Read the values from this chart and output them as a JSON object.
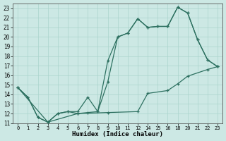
{
  "xlabel": "Humidex (Indice chaleur)",
  "bg_color": "#cce8e4",
  "grid_color": "#aad4cc",
  "line_color": "#2d7060",
  "xlim": [
    -0.5,
    20.5
  ],
  "ylim": [
    11,
    23.5
  ],
  "xtick_positions": [
    0,
    1,
    2,
    3,
    4,
    5,
    6,
    7,
    8,
    9,
    10,
    11,
    12,
    13,
    14,
    15,
    16,
    17,
    18,
    19,
    20
  ],
  "xtick_labels": [
    "0",
    "1",
    "2",
    "3",
    "4",
    "5",
    "6",
    "7",
    "8",
    "9",
    "10",
    "11",
    "12",
    "14",
    "15",
    "16",
    "18",
    "20",
    "21",
    "22",
    "23"
  ],
  "ytick_vals": [
    11,
    12,
    13,
    14,
    15,
    16,
    17,
    18,
    19,
    20,
    21,
    22,
    23
  ],
  "line1_xi": [
    0,
    1,
    2,
    3,
    4,
    5,
    6,
    7,
    8,
    9,
    10,
    11,
    12,
    13,
    14,
    15,
    16,
    17,
    18,
    19,
    20
  ],
  "line1_y": [
    14.7,
    13.7,
    11.6,
    11.1,
    12.0,
    12.2,
    12.0,
    12.1,
    12.2,
    15.3,
    20.0,
    20.4,
    21.9,
    21.0,
    21.1,
    21.1,
    23.1,
    22.5,
    19.7,
    17.6,
    16.9
  ],
  "line2_xi": [
    0,
    1,
    2,
    3,
    4,
    5,
    6,
    7,
    8,
    9,
    10,
    11,
    12,
    13,
    14,
    15,
    16,
    17,
    18,
    19,
    20
  ],
  "line2_y": [
    14.7,
    13.7,
    11.6,
    11.1,
    12.0,
    12.2,
    12.2,
    13.7,
    12.2,
    17.5,
    20.0,
    20.4,
    21.9,
    21.0,
    21.1,
    21.1,
    23.1,
    22.5,
    19.7,
    17.6,
    16.9
  ],
  "line3_xi": [
    0,
    3,
    6,
    9,
    12,
    13,
    15,
    16,
    17,
    19,
    20
  ],
  "line3_y": [
    14.7,
    11.1,
    12.0,
    12.1,
    12.2,
    14.1,
    14.4,
    15.1,
    15.9,
    16.6,
    16.9
  ]
}
